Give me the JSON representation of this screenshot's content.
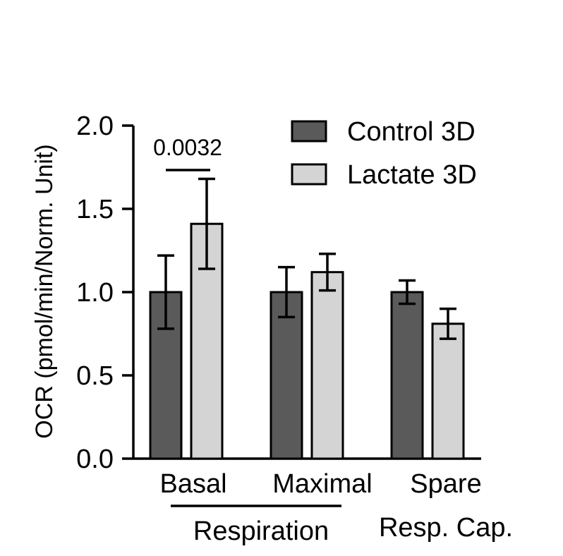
{
  "chart_data": {
    "type": "bar",
    "ylabel": "OCR (pmol/min/Norm. Unit)",
    "ylim": [
      0,
      2.0
    ],
    "yticks": [
      "0.0",
      "0.5",
      "1.0",
      "1.5",
      "2.0"
    ],
    "categories": [
      "Basal",
      "Maximal",
      "Spare"
    ],
    "group_labels": [
      {
        "label": "Respiration",
        "spans": [
          "Basal",
          "Maximal"
        ]
      },
      {
        "label": "Resp. Cap.",
        "spans": [
          "Spare"
        ]
      }
    ],
    "series": [
      {
        "name": "Control 3D",
        "color": "#5a5a5a",
        "values": [
          1.0,
          1.0,
          1.0
        ],
        "errors": [
          0.22,
          0.15,
          0.07
        ]
      },
      {
        "name": "Lactate 3D",
        "color": "#d4d4d4",
        "values": [
          1.41,
          1.12,
          0.81
        ],
        "errors": [
          0.27,
          0.11,
          0.09
        ]
      }
    ],
    "annotations": [
      {
        "text": "0.0032",
        "category": "Basal"
      }
    ],
    "legend_position": "top-right",
    "grid": false
  }
}
